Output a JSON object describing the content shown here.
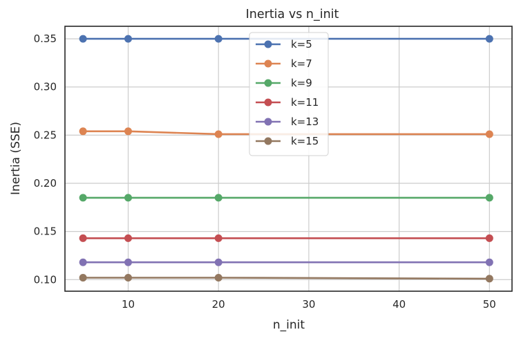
{
  "chart_data": {
    "type": "line",
    "title": "Inertia vs n_init",
    "xlabel": "n_init",
    "ylabel": "Inertia (SSE)",
    "x": [
      5,
      10,
      20,
      50
    ],
    "xlim": [
      3,
      52.5
    ],
    "ylim": [
      0.088,
      0.363
    ],
    "xticks": [
      10,
      20,
      30,
      40,
      50
    ],
    "yticks": [
      0.1,
      0.15,
      0.2,
      0.25,
      0.3,
      0.35
    ],
    "grid": true,
    "legend_position": "top-center",
    "series": [
      {
        "name": "k=5",
        "color": "#4c72b0",
        "values": [
          0.35,
          0.35,
          0.35,
          0.35
        ]
      },
      {
        "name": "k=7",
        "color": "#dd8452",
        "values": [
          0.254,
          0.254,
          0.251,
          0.251
        ]
      },
      {
        "name": "k=9",
        "color": "#55a868",
        "values": [
          0.185,
          0.185,
          0.185,
          0.185
        ]
      },
      {
        "name": "k=11",
        "color": "#c44e52",
        "values": [
          0.143,
          0.143,
          0.143,
          0.143
        ]
      },
      {
        "name": "k=13",
        "color": "#8172b3",
        "values": [
          0.118,
          0.118,
          0.118,
          0.118
        ]
      },
      {
        "name": "k=15",
        "color": "#937860",
        "values": [
          0.102,
          0.102,
          0.102,
          0.101
        ]
      }
    ]
  }
}
